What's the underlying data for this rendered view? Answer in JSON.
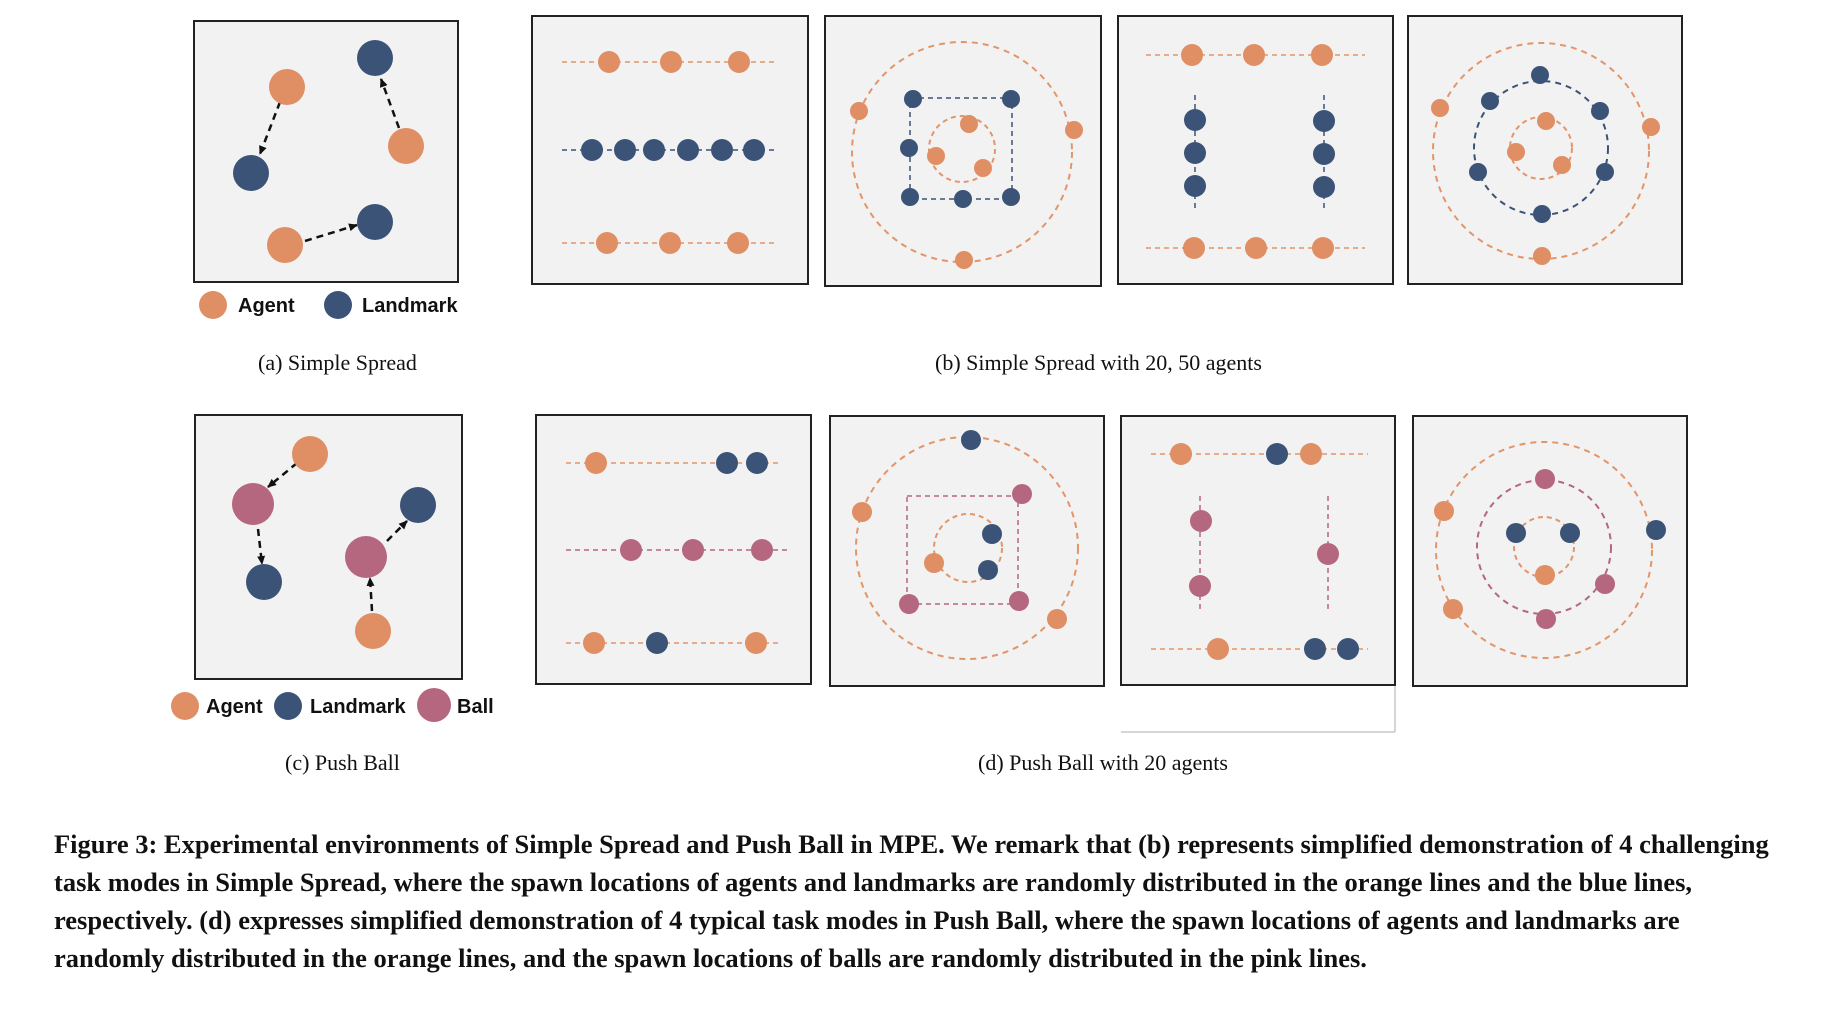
{
  "colors": {
    "agent": "#e08e63",
    "landmark": "#3c5378",
    "ball": "#b5677f",
    "panel_bg": "#f2f2f2",
    "panel_border": "#222222",
    "guide_orange": "#e3956a",
    "guide_blue": "#3c5378",
    "guide_pink": "#b5677f"
  },
  "legend_a": {
    "agent": "Agent",
    "landmark": "Landmark"
  },
  "legend_c": {
    "agent": "Agent",
    "landmark": "Landmark",
    "ball": "Ball"
  },
  "subcaptions": {
    "a": "(a)  Simple Spread",
    "b": "(b)  Simple Spread with 20, 50 agents",
    "c": "(c)  Push Ball",
    "d": "(d)  Push Ball with 20 agents"
  },
  "caption": "Figure 3: Experimental environments of Simple Spread and Push Ball in MPE. We remark that (b) represents simplified demonstration of 4 challenging task modes in Simple Spread, where the spawn locations of agents and landmarks are randomly distributed in the orange lines and the blue lines, respectively. (d) expresses simplified demonstration of 4 typical task modes in Push Ball, where the spawn locations of agents and landmarks are randomly distributed in the orange lines, and the spawn locations of balls are randomly distributed in the pink lines."
}
